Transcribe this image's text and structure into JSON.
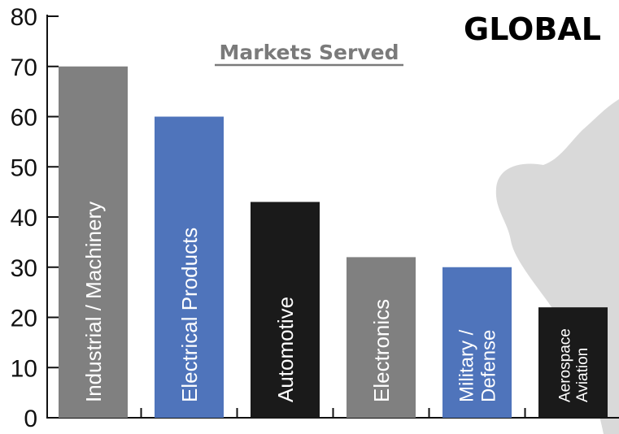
{
  "chart_data": {
    "type": "bar",
    "title": "Markets Served",
    "background_text": "GLOBAL",
    "ylim": [
      0,
      80
    ],
    "yticks": [
      0,
      10,
      20,
      30,
      40,
      50,
      60,
      70,
      80
    ],
    "grid": false,
    "categories": [
      [
        "Industrial / Machinery"
      ],
      [
        "Electrical Products"
      ],
      [
        "Automotive"
      ],
      [
        "Electronics"
      ],
      [
        "Military /",
        "Defense"
      ],
      [
        "Aerospace",
        "Aviation"
      ]
    ],
    "values": [
      70,
      60,
      43,
      32,
      30,
      22
    ],
    "colors": [
      "#808080",
      "#4f74bb",
      "#1a1a1a",
      "#808080",
      "#4f74bb",
      "#1a1a1a"
    ]
  },
  "colors": {
    "map": "#d9d9d9",
    "axis": "#111111",
    "subtitle": "#7a7a7a"
  }
}
